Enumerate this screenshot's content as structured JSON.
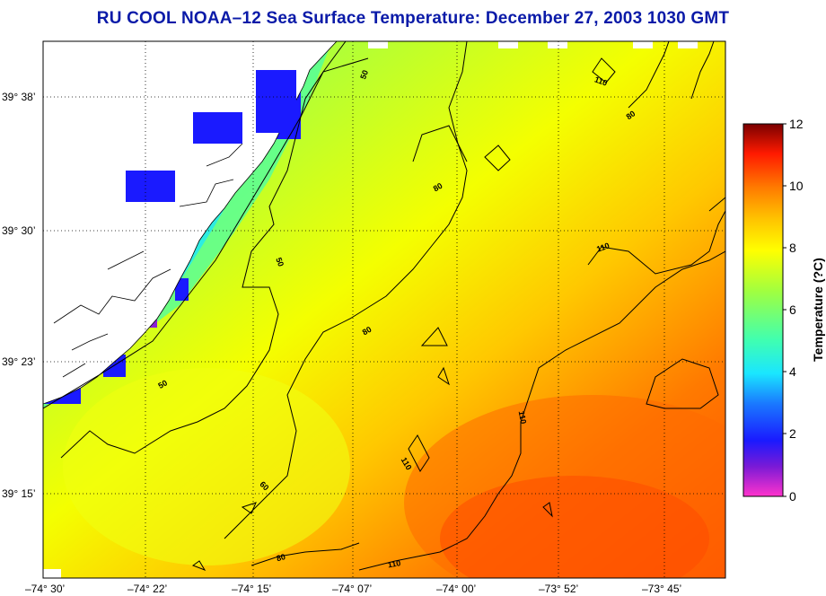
{
  "title": "RU COOL  NOAA–12  Sea Surface Temperature:  December 27, 2003 1030 GMT",
  "map": {
    "lat_ticks": [
      "39° 38’",
      "39° 30’",
      "39° 23’",
      "39° 15’"
    ],
    "lon_ticks": [
      "–74° 30’",
      "–74° 22’",
      "–74° 15’",
      "–74° 07’",
      "–74° 00’",
      "–73° 52’",
      "–73° 45’"
    ],
    "contour_labels": [
      "50",
      "50",
      "50",
      "80",
      "80",
      "80",
      "80",
      "110",
      "110",
      "110",
      "110",
      "110",
      "60"
    ]
  },
  "colorbar": {
    "title": "Temperature (?C)",
    "ticks": [
      "0",
      "2",
      "4",
      "6",
      "8",
      "10",
      "12"
    ],
    "range": [
      0,
      12
    ],
    "colors": [
      "#ff33cc",
      "#7a1ad6",
      "#1a1aff",
      "#1a7aff",
      "#1ae6ff",
      "#40ffb0",
      "#a0ff40",
      "#ffff00",
      "#ffbf00",
      "#ff7a00",
      "#ff2a00",
      "#c00000",
      "#800000"
    ]
  },
  "colors": {
    "title": "#0a1aa8",
    "land": "#ffffff",
    "coast": "#000000"
  }
}
